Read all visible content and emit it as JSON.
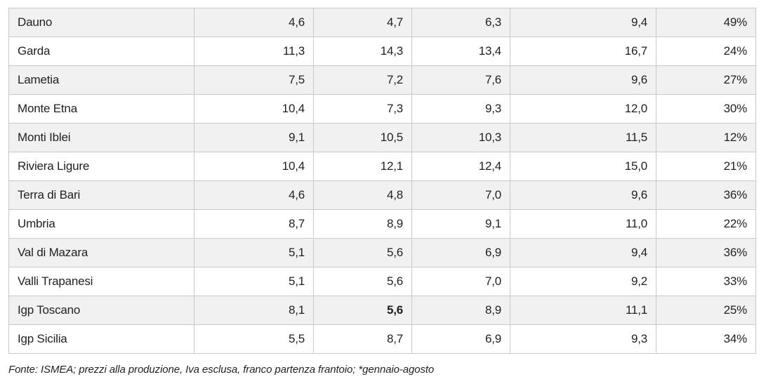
{
  "table": {
    "rows": [
      {
        "name": "Dauno",
        "values": [
          "4,6",
          "4,7",
          "6,3",
          "9,4",
          "49%"
        ]
      },
      {
        "name": "Garda",
        "values": [
          "11,3",
          "14,3",
          "13,4",
          "16,7",
          "24%"
        ]
      },
      {
        "name": "Lametia",
        "values": [
          "7,5",
          "7,2",
          "7,6",
          "9,6",
          "27%"
        ]
      },
      {
        "name": "Monte Etna",
        "values": [
          "10,4",
          "7,3",
          "9,3",
          "12,0",
          "30%"
        ]
      },
      {
        "name": "Monti Iblei",
        "values": [
          "9,1",
          "10,5",
          "10,3",
          "11,5",
          "12%"
        ]
      },
      {
        "name": "Riviera Ligure",
        "values": [
          "10,4",
          "12,1",
          "12,4",
          "15,0",
          "21%"
        ]
      },
      {
        "name": "Terra di Bari",
        "values": [
          "4,6",
          "4,8",
          "7,0",
          "9,6",
          "36%"
        ]
      },
      {
        "name": "Umbria",
        "values": [
          "8,7",
          "8,9",
          "9,1",
          "11,0",
          "22%"
        ]
      },
      {
        "name": "Val di Mazara",
        "values": [
          "5,1",
          "5,6",
          "6,9",
          "9,4",
          "36%"
        ]
      },
      {
        "name": "Valli Trapanesi",
        "values": [
          "5,1",
          "5,6",
          "7,0",
          "9,2",
          "33%"
        ]
      },
      {
        "name": "Igp Toscano",
        "values": [
          "8,1",
          "5,6",
          "8,9",
          "11,1",
          "25%"
        ],
        "bold_index": 1
      },
      {
        "name": "Igp Sicilia",
        "values": [
          "5,5",
          "8,7",
          "6,9",
          "9,3",
          "34%"
        ]
      }
    ]
  },
  "footnote": "Fonte: ISMEA; prezzi alla produzione, Iva esclusa, franco partenza frantoio; *gennaio-agosto",
  "colors": {
    "row_shade": "#f1f1f1",
    "border": "#c9c9c9",
    "text": "#231f20"
  }
}
